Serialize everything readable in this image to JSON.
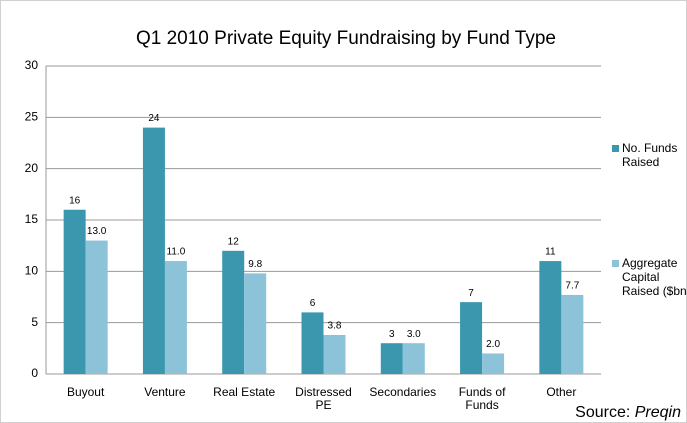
{
  "chart_data": {
    "type": "bar",
    "title": "Q1 2010 Private Equity Fundraising by Fund Type",
    "categories": [
      "Buyout",
      "Venture",
      "Real Estate",
      "Distressed PE",
      "Secondaries",
      "Funds of Funds",
      "Other"
    ],
    "series": [
      {
        "name": "No. Funds Raised",
        "color": "#3a97ad",
        "values": [
          16,
          24,
          12,
          6,
          3,
          7,
          11
        ]
      },
      {
        "name": "Aggregate Capital Raised ($bn)",
        "color": "#8cc3d8",
        "values": [
          13.0,
          11.0,
          9.8,
          3.8,
          3.0,
          2.0,
          7.7
        ],
        "value_labels": [
          "13.0",
          "11.0",
          "9.8",
          "3.8",
          "3.0",
          "2.0",
          "7.7"
        ]
      }
    ],
    "ylim": [
      0,
      30
    ],
    "yticks": [
      0,
      5,
      10,
      15,
      20,
      25,
      30
    ],
    "grid": true,
    "legend": "right",
    "source": {
      "label": "Source:",
      "name": "Preqin"
    }
  }
}
